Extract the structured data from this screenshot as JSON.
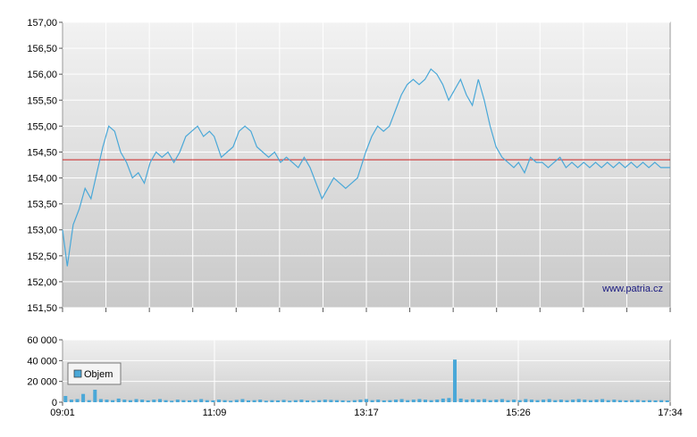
{
  "chart_data": [
    {
      "type": "line",
      "title": "",
      "xlabel": "",
      "ylabel": "",
      "ylim": [
        151.5,
        157.0
      ],
      "y_ticks": [
        "151,50",
        "152,00",
        "152,50",
        "153,00",
        "153,50",
        "154,00",
        "154,50",
        "155,00",
        "155,50",
        "156,00",
        "156,50",
        "157,00"
      ],
      "y_tick_values": [
        151.5,
        152.0,
        152.5,
        153.0,
        153.5,
        154.0,
        154.5,
        155.0,
        155.5,
        156.0,
        156.5,
        157.0
      ],
      "reference_line": 154.35,
      "grid": true,
      "watermark": "www.patria.cz",
      "series": [
        {
          "x": [
            "09:01",
            "09:05",
            "09:10",
            "09:15",
            "09:20",
            "09:25",
            "09:30",
            "09:35",
            "09:40",
            "09:45",
            "09:50",
            "09:55",
            "10:00",
            "10:05",
            "10:10",
            "10:15",
            "10:20",
            "10:25",
            "10:30",
            "10:35",
            "10:40",
            "10:45",
            "10:50",
            "10:55",
            "11:00",
            "11:05",
            "11:09",
            "11:15",
            "11:20",
            "11:25",
            "11:30",
            "11:35",
            "11:40",
            "11:45",
            "11:50",
            "11:55",
            "12:00",
            "12:05",
            "12:10",
            "12:15",
            "12:20",
            "12:25",
            "12:30",
            "12:35",
            "12:40",
            "12:45",
            "12:50",
            "12:55",
            "13:00",
            "13:05",
            "13:10",
            "13:17",
            "13:22",
            "13:27",
            "13:32",
            "13:37",
            "13:42",
            "13:47",
            "13:52",
            "13:57",
            "14:02",
            "14:07",
            "14:12",
            "14:17",
            "14:22",
            "14:27",
            "14:32",
            "14:37",
            "14:42",
            "14:47",
            "14:52",
            "14:57",
            "15:02",
            "15:07",
            "15:12",
            "15:17",
            "15:22",
            "15:26",
            "15:31",
            "15:36",
            "15:41",
            "15:46",
            "15:51",
            "15:56",
            "16:01",
            "16:06",
            "16:11",
            "16:16",
            "16:21",
            "16:26",
            "16:31",
            "16:36",
            "16:41",
            "16:46",
            "16:51",
            "16:56",
            "17:01",
            "17:06",
            "17:11",
            "17:16",
            "17:21",
            "17:26",
            "17:34"
          ],
          "values": [
            153.0,
            152.3,
            153.1,
            153.4,
            153.8,
            153.6,
            154.1,
            154.6,
            155.0,
            154.9,
            154.5,
            154.3,
            154.0,
            154.1,
            153.9,
            154.3,
            154.5,
            154.4,
            154.5,
            154.3,
            154.5,
            154.8,
            154.9,
            155.0,
            154.8,
            154.9,
            154.8,
            154.4,
            154.5,
            154.6,
            154.9,
            155.0,
            154.9,
            154.6,
            154.5,
            154.4,
            154.5,
            154.3,
            154.4,
            154.3,
            154.2,
            154.4,
            154.2,
            153.9,
            153.6,
            153.8,
            154.0,
            153.9,
            153.8,
            153.9,
            154.0,
            154.5,
            154.8,
            155.0,
            154.9,
            155.0,
            155.3,
            155.6,
            155.8,
            155.9,
            155.8,
            155.9,
            156.1,
            156.0,
            155.8,
            155.5,
            155.7,
            155.9,
            155.6,
            155.4,
            155.9,
            155.5,
            155.0,
            154.6,
            154.4,
            154.3,
            154.2,
            154.3,
            154.1,
            154.4,
            154.3,
            154.3,
            154.2,
            154.3,
            154.4,
            154.2,
            154.3,
            154.2,
            154.3,
            154.2,
            154.3,
            154.2,
            154.3,
            154.2,
            154.3,
            154.2,
            154.3,
            154.2,
            154.3,
            154.2,
            154.3,
            154.2,
            154.2
          ]
        }
      ]
    },
    {
      "type": "bar",
      "title": "",
      "xlabel": "",
      "ylabel": "",
      "ylim": [
        0,
        60000
      ],
      "y_ticks": [
        "0",
        "20 000",
        "40 000",
        "60 000"
      ],
      "y_tick_values": [
        0,
        20000,
        40000,
        60000
      ],
      "x_ticks": [
        "09:01",
        "11:09",
        "13:17",
        "15:26",
        "17:34"
      ],
      "legend": "top-left",
      "series": [
        {
          "name": "Objem",
          "values": [
            6000,
            2500,
            3000,
            8000,
            2000,
            12000,
            3000,
            2500,
            2000,
            3500,
            2500,
            2000,
            3000,
            2500,
            1800,
            2500,
            3000,
            2000,
            1500,
            2500,
            2000,
            1800,
            2200,
            3000,
            2000,
            1800,
            2500,
            2000,
            1500,
            2200,
            3000,
            1800,
            2000,
            2500,
            1500,
            2000,
            1800,
            2200,
            1500,
            2000,
            2500,
            1800,
            1500,
            2000,
            2500,
            2200,
            2000,
            1800,
            1500,
            2000,
            2500,
            3000,
            2000,
            2500,
            1800,
            2000,
            2500,
            3000,
            2000,
            2500,
            3000,
            2500,
            2000,
            2500,
            3500,
            4000,
            41000,
            3500,
            2500,
            3000,
            2500,
            3000,
            2000,
            2500,
            3000,
            2000,
            2500,
            2000,
            3000,
            2500,
            2000,
            2500,
            3000,
            2000,
            2500,
            2000,
            2500,
            3000,
            2500,
            2000,
            2500,
            3000,
            2000,
            2500,
            2000,
            1800,
            2000,
            2200,
            1800,
            2000,
            1800,
            2000,
            1800
          ]
        }
      ]
    }
  ]
}
